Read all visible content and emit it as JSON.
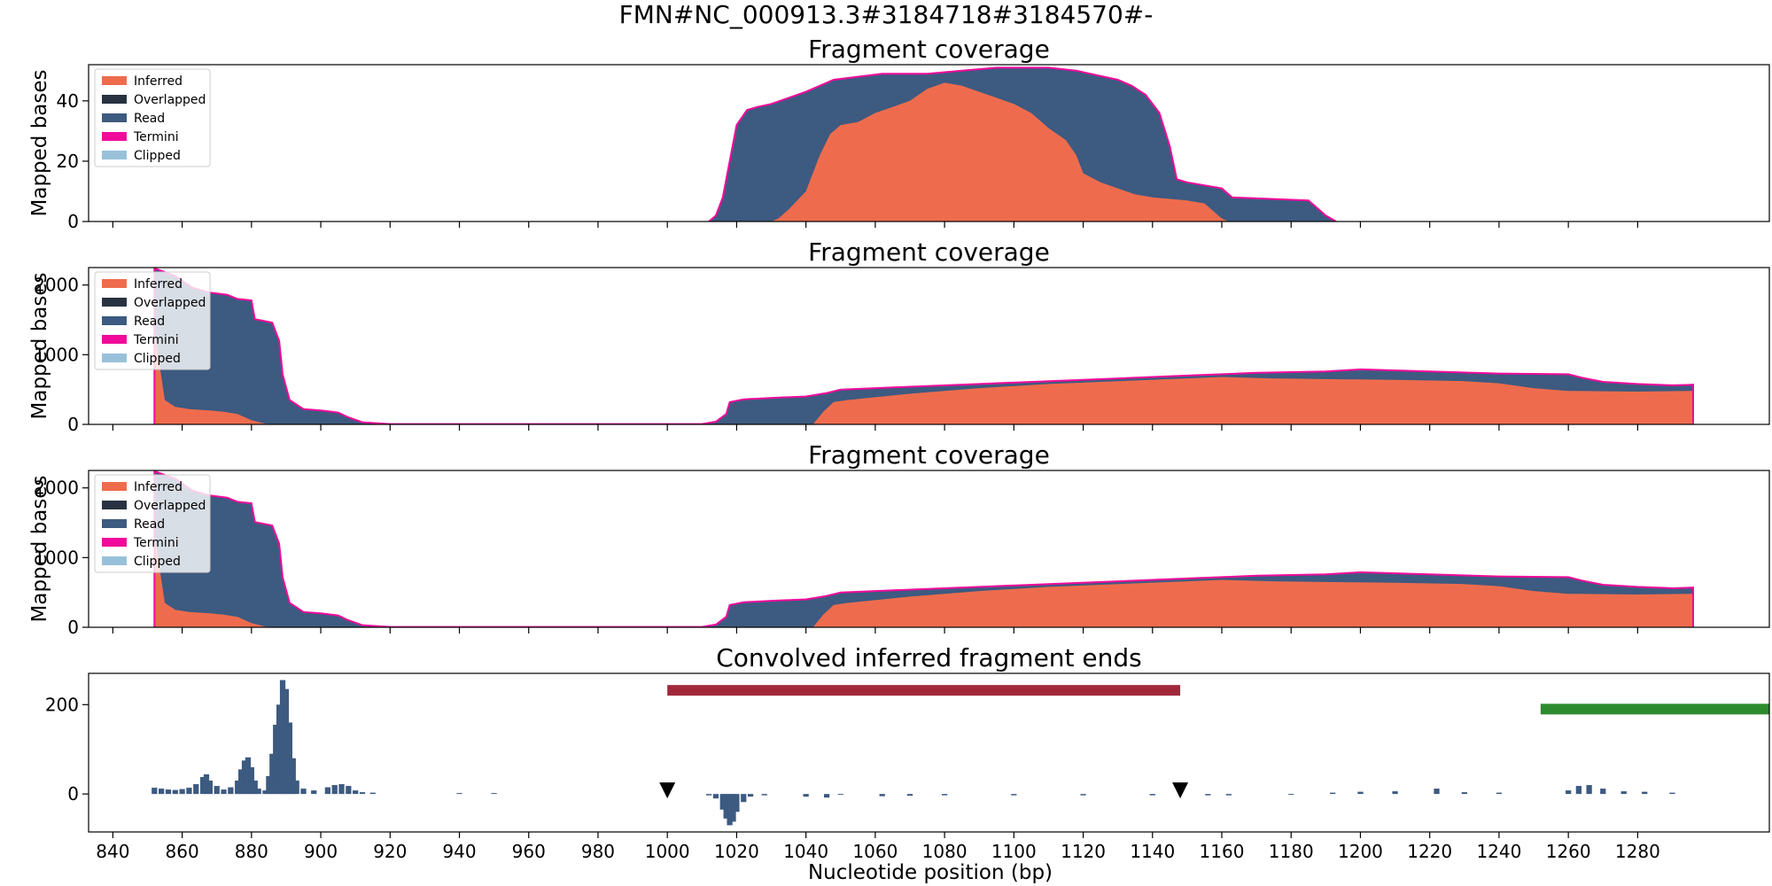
{
  "suptitle": "FMN#NC_000913.3#3184718#3184570#-",
  "xlabel": "Nucleotide position (bp)",
  "x_ticks": [
    840,
    860,
    880,
    900,
    920,
    940,
    960,
    980,
    1000,
    1020,
    1040,
    1060,
    1080,
    1100,
    1120,
    1140,
    1160,
    1180,
    1200,
    1220,
    1240,
    1260,
    1280
  ],
  "legend_items": [
    {
      "label": "Inferred",
      "color": "#ee6c4d"
    },
    {
      "label": "Overlapped",
      "color": "#293241"
    },
    {
      "label": "Read",
      "color": "#3d5a80"
    },
    {
      "label": "Termini",
      "color": "#f00b9b"
    },
    {
      "label": "Clipped",
      "color": "#98c1d9"
    }
  ],
  "chart_data": [
    {
      "type": "area",
      "title": "Fragment coverage",
      "ylabel": "Mapped bases",
      "xlim": [
        833,
        1318
      ],
      "ylim": [
        0,
        52
      ],
      "yticks": [
        0,
        20,
        40
      ],
      "legend_position": "upper left",
      "read_total": [
        [
          1012,
          0
        ],
        [
          1014,
          2
        ],
        [
          1016,
          8
        ],
        [
          1018,
          20
        ],
        [
          1020,
          32
        ],
        [
          1023,
          37
        ],
        [
          1026,
          38
        ],
        [
          1030,
          39
        ],
        [
          1035,
          41
        ],
        [
          1040,
          43
        ],
        [
          1044,
          45
        ],
        [
          1048,
          47
        ],
        [
          1055,
          48
        ],
        [
          1062,
          49
        ],
        [
          1075,
          49
        ],
        [
          1085,
          50
        ],
        [
          1095,
          51
        ],
        [
          1110,
          51
        ],
        [
          1118,
          50
        ],
        [
          1122,
          49
        ],
        [
          1126,
          48
        ],
        [
          1130,
          47
        ],
        [
          1134,
          45
        ],
        [
          1138,
          42
        ],
        [
          1142,
          36
        ],
        [
          1145,
          25
        ],
        [
          1147,
          14
        ],
        [
          1150,
          13
        ],
        [
          1155,
          12
        ],
        [
          1160,
          11
        ],
        [
          1163,
          8
        ],
        [
          1185,
          7
        ],
        [
          1188,
          4
        ],
        [
          1190,
          2
        ],
        [
          1193,
          0
        ]
      ],
      "inferred": [
        [
          1030,
          0
        ],
        [
          1032,
          1
        ],
        [
          1035,
          4
        ],
        [
          1040,
          10
        ],
        [
          1044,
          22
        ],
        [
          1047,
          29
        ],
        [
          1050,
          32
        ],
        [
          1055,
          33
        ],
        [
          1060,
          36
        ],
        [
          1065,
          38
        ],
        [
          1070,
          40
        ],
        [
          1075,
          44
        ],
        [
          1080,
          46
        ],
        [
          1085,
          45
        ],
        [
          1090,
          43
        ],
        [
          1095,
          41
        ],
        [
          1100,
          39
        ],
        [
          1105,
          36
        ],
        [
          1110,
          31
        ],
        [
          1115,
          27
        ],
        [
          1118,
          22
        ],
        [
          1120,
          16
        ],
        [
          1125,
          13
        ],
        [
          1130,
          11
        ],
        [
          1135,
          9
        ],
        [
          1140,
          8
        ],
        [
          1150,
          7
        ],
        [
          1155,
          6
        ],
        [
          1160,
          1
        ],
        [
          1162,
          0
        ]
      ]
    },
    {
      "type": "area",
      "title": "Fragment coverage",
      "ylabel": "Mapped bases",
      "xlim": [
        833,
        1318
      ],
      "ylim": [
        0,
        2250
      ],
      "yticks": [
        0,
        1000,
        2000
      ],
      "legend_position": "upper left",
      "read_total": [
        [
          852,
          0
        ],
        [
          852,
          2240
        ],
        [
          858,
          2130
        ],
        [
          863,
          1960
        ],
        [
          868,
          1890
        ],
        [
          873,
          1860
        ],
        [
          876,
          1800
        ],
        [
          880,
          1780
        ],
        [
          881,
          1510
        ],
        [
          886,
          1460
        ],
        [
          888,
          1200
        ],
        [
          889,
          720
        ],
        [
          891,
          350
        ],
        [
          895,
          220
        ],
        [
          900,
          200
        ],
        [
          905,
          170
        ],
        [
          908,
          100
        ],
        [
          912,
          30
        ],
        [
          920,
          5
        ],
        [
          1010,
          5
        ],
        [
          1014,
          40
        ],
        [
          1017,
          150
        ],
        [
          1018,
          320
        ],
        [
          1022,
          360
        ],
        [
          1030,
          380
        ],
        [
          1040,
          400
        ],
        [
          1046,
          450
        ],
        [
          1050,
          500
        ],
        [
          1070,
          540
        ],
        [
          1090,
          580
        ],
        [
          1110,
          620
        ],
        [
          1130,
          660
        ],
        [
          1150,
          700
        ],
        [
          1170,
          740
        ],
        [
          1190,
          760
        ],
        [
          1200,
          790
        ],
        [
          1220,
          760
        ],
        [
          1240,
          730
        ],
        [
          1260,
          720
        ],
        [
          1264,
          670
        ],
        [
          1270,
          610
        ],
        [
          1280,
          580
        ],
        [
          1290,
          560
        ],
        [
          1296,
          570
        ],
        [
          1296,
          0
        ]
      ],
      "inferred": [
        [
          852,
          0
        ],
        [
          852,
          1350
        ],
        [
          855,
          350
        ],
        [
          858,
          250
        ],
        [
          862,
          220
        ],
        [
          868,
          200
        ],
        [
          872,
          180
        ],
        [
          876,
          150
        ],
        [
          880,
          60
        ],
        [
          884,
          10
        ],
        [
          886,
          0
        ],
        [
          1042,
          0
        ],
        [
          1045,
          180
        ],
        [
          1048,
          320
        ],
        [
          1052,
          350
        ],
        [
          1070,
          440
        ],
        [
          1090,
          520
        ],
        [
          1110,
          580
        ],
        [
          1130,
          620
        ],
        [
          1150,
          660
        ],
        [
          1160,
          680
        ],
        [
          1175,
          660
        ],
        [
          1190,
          650
        ],
        [
          1210,
          640
        ],
        [
          1230,
          620
        ],
        [
          1240,
          590
        ],
        [
          1250,
          520
        ],
        [
          1260,
          480
        ],
        [
          1280,
          470
        ],
        [
          1296,
          480
        ],
        [
          1296,
          0
        ]
      ]
    },
    {
      "type": "area",
      "title": "Fragment coverage",
      "ylabel": "Mapped bases",
      "xlim": [
        833,
        1318
      ],
      "ylim": [
        0,
        2250
      ],
      "yticks": [
        0,
        1000,
        2000
      ],
      "legend_position": "upper left",
      "read_total": [
        [
          852,
          0
        ],
        [
          852,
          2240
        ],
        [
          858,
          2130
        ],
        [
          863,
          1960
        ],
        [
          868,
          1890
        ],
        [
          873,
          1860
        ],
        [
          876,
          1800
        ],
        [
          880,
          1780
        ],
        [
          881,
          1510
        ],
        [
          886,
          1460
        ],
        [
          888,
          1200
        ],
        [
          889,
          720
        ],
        [
          891,
          350
        ],
        [
          895,
          220
        ],
        [
          900,
          200
        ],
        [
          905,
          170
        ],
        [
          908,
          100
        ],
        [
          912,
          30
        ],
        [
          920,
          5
        ],
        [
          1010,
          5
        ],
        [
          1014,
          40
        ],
        [
          1017,
          150
        ],
        [
          1018,
          320
        ],
        [
          1022,
          360
        ],
        [
          1030,
          380
        ],
        [
          1040,
          400
        ],
        [
          1046,
          450
        ],
        [
          1050,
          500
        ],
        [
          1070,
          540
        ],
        [
          1090,
          580
        ],
        [
          1110,
          620
        ],
        [
          1130,
          660
        ],
        [
          1150,
          700
        ],
        [
          1170,
          740
        ],
        [
          1190,
          760
        ],
        [
          1200,
          790
        ],
        [
          1220,
          760
        ],
        [
          1240,
          730
        ],
        [
          1260,
          720
        ],
        [
          1264,
          670
        ],
        [
          1270,
          610
        ],
        [
          1280,
          580
        ],
        [
          1290,
          560
        ],
        [
          1296,
          570
        ],
        [
          1296,
          0
        ]
      ],
      "inferred": [
        [
          852,
          0
        ],
        [
          852,
          1350
        ],
        [
          855,
          350
        ],
        [
          858,
          250
        ],
        [
          862,
          220
        ],
        [
          868,
          200
        ],
        [
          872,
          180
        ],
        [
          876,
          150
        ],
        [
          880,
          60
        ],
        [
          884,
          10
        ],
        [
          886,
          0
        ],
        [
          1042,
          0
        ],
        [
          1045,
          180
        ],
        [
          1048,
          320
        ],
        [
          1052,
          350
        ],
        [
          1070,
          440
        ],
        [
          1090,
          520
        ],
        [
          1110,
          580
        ],
        [
          1130,
          620
        ],
        [
          1150,
          660
        ],
        [
          1160,
          680
        ],
        [
          1175,
          660
        ],
        [
          1190,
          650
        ],
        [
          1210,
          640
        ],
        [
          1230,
          620
        ],
        [
          1240,
          590
        ],
        [
          1250,
          520
        ],
        [
          1260,
          480
        ],
        [
          1280,
          470
        ],
        [
          1296,
          480
        ],
        [
          1296,
          0
        ]
      ]
    },
    {
      "type": "bar",
      "title": "Convolved inferred fragment ends",
      "xlim": [
        833,
        1318
      ],
      "ylim": [
        -85,
        270
      ],
      "yticks": [
        0,
        200
      ],
      "bar_color": "#3d5a80",
      "bars": [
        [
          852,
          14
        ],
        [
          854,
          12
        ],
        [
          856,
          10
        ],
        [
          858,
          9
        ],
        [
          860,
          11
        ],
        [
          862,
          14
        ],
        [
          864,
          22
        ],
        [
          866,
          38
        ],
        [
          867,
          44
        ],
        [
          868,
          30
        ],
        [
          870,
          18
        ],
        [
          872,
          10
        ],
        [
          874,
          15
        ],
        [
          876,
          30
        ],
        [
          877,
          55
        ],
        [
          878,
          75
        ],
        [
          879,
          82
        ],
        [
          880,
          60
        ],
        [
          881,
          30
        ],
        [
          882,
          12
        ],
        [
          884,
          8
        ],
        [
          885,
          40
        ],
        [
          886,
          90
        ],
        [
          887,
          155
        ],
        [
          888,
          200
        ],
        [
          889,
          255
        ],
        [
          890,
          235
        ],
        [
          891,
          160
        ],
        [
          892,
          80
        ],
        [
          893,
          30
        ],
        [
          895,
          12
        ],
        [
          898,
          8
        ],
        [
          902,
          15
        ],
        [
          904,
          20
        ],
        [
          906,
          22
        ],
        [
          908,
          18
        ],
        [
          910,
          8
        ],
        [
          912,
          4
        ],
        [
          915,
          3
        ],
        [
          940,
          2
        ],
        [
          950,
          2
        ],
        [
          1012,
          -3
        ],
        [
          1014,
          -10
        ],
        [
          1016,
          -35
        ],
        [
          1017,
          -55
        ],
        [
          1018,
          -70
        ],
        [
          1019,
          -62
        ],
        [
          1020,
          -40
        ],
        [
          1022,
          -18
        ],
        [
          1024,
          -6
        ],
        [
          1028,
          -3
        ],
        [
          1040,
          -6
        ],
        [
          1046,
          -8
        ],
        [
          1050,
          -2
        ],
        [
          1062,
          -5
        ],
        [
          1070,
          -4
        ],
        [
          1080,
          -3
        ],
        [
          1100,
          -3
        ],
        [
          1120,
          -3
        ],
        [
          1140,
          -3
        ],
        [
          1156,
          -3
        ],
        [
          1162,
          -3
        ],
        [
          1180,
          -2
        ],
        [
          1192,
          3
        ],
        [
          1200,
          5
        ],
        [
          1210,
          6
        ],
        [
          1222,
          12
        ],
        [
          1230,
          4
        ],
        [
          1240,
          3
        ],
        [
          1260,
          8
        ],
        [
          1263,
          18
        ],
        [
          1266,
          20
        ],
        [
          1270,
          12
        ],
        [
          1276,
          6
        ],
        [
          1282,
          5
        ],
        [
          1290,
          3
        ]
      ],
      "bands": [
        {
          "x_start": 1000,
          "x_end": 1148,
          "value": 232,
          "color": "#a1283b"
        },
        {
          "x_start": 1252,
          "x_end": 1318,
          "value": 190,
          "color": "#2d8a2d"
        }
      ],
      "markers": [
        {
          "x": 1000,
          "shape": "down-triangle"
        },
        {
          "x": 1148,
          "shape": "down-triangle"
        }
      ]
    }
  ]
}
